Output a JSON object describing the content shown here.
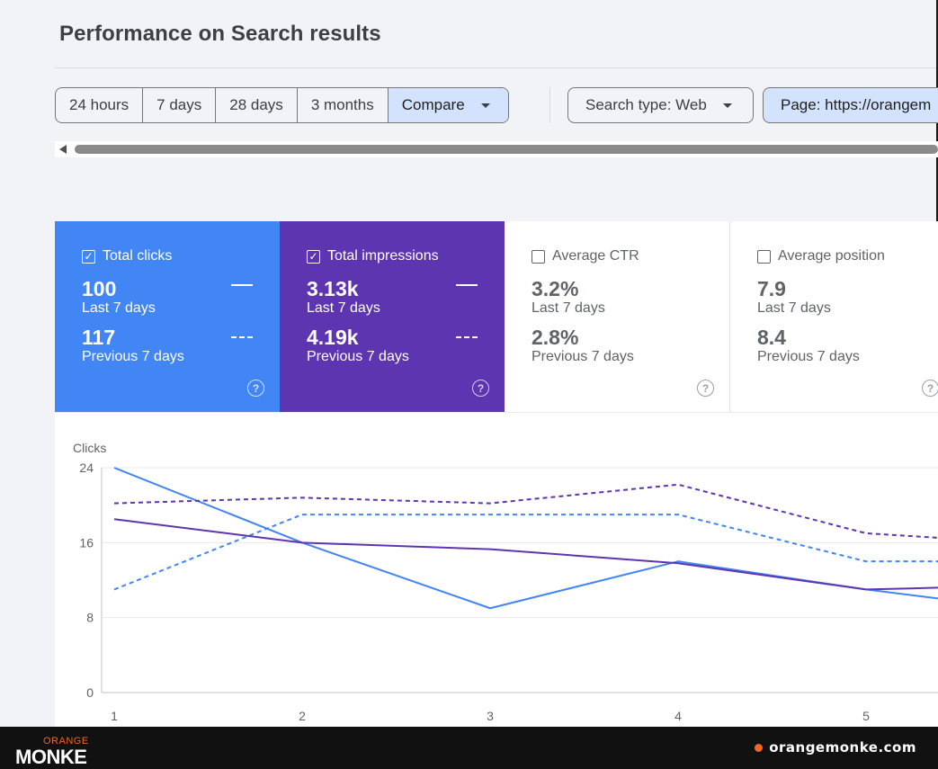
{
  "page": {
    "title": "Performance on Search results"
  },
  "date_range": {
    "options": [
      "24 hours",
      "7 days",
      "28 days",
      "3 months"
    ],
    "compare_label": "Compare"
  },
  "filters": {
    "search_type": "Search type: Web",
    "page": "Page: https://orangem"
  },
  "metrics": {
    "clicks": {
      "label": "Total clicks",
      "checked": true,
      "current": "100",
      "current_period": "Last 7 days",
      "previous": "117",
      "previous_period": "Previous 7 days",
      "color": "#4285f4"
    },
    "impressions": {
      "label": "Total impressions",
      "checked": true,
      "current": "3.13k",
      "current_period": "Last 7 days",
      "previous": "4.19k",
      "previous_period": "Previous 7 days",
      "color": "#5e35b1"
    },
    "ctr": {
      "label": "Average CTR",
      "checked": false,
      "current": "3.2%",
      "current_period": "Last 7 days",
      "previous": "2.8%",
      "previous_period": "Previous 7 days"
    },
    "position": {
      "label": "Average position",
      "checked": false,
      "current": "7.9",
      "current_period": "Last 7 days",
      "previous": "8.4",
      "previous_period": "Previous 7 days"
    }
  },
  "chart_data": {
    "type": "line",
    "ylabel": "Clicks",
    "x": [
      1,
      2,
      3,
      4,
      5,
      5.4
    ],
    "xticks": [
      "1",
      "2",
      "3",
      "4",
      "5"
    ],
    "yticks": [
      "0",
      "8",
      "16",
      "24"
    ],
    "ylim": [
      0,
      24
    ],
    "grid": true,
    "series": [
      {
        "style": "solid",
        "color": "#4285f4",
        "values": [
          24,
          16,
          9,
          14,
          11,
          10
        ]
      },
      {
        "style": "dashed",
        "color": "#4285f4",
        "values": [
          11,
          19,
          19,
          19,
          14,
          14
        ]
      },
      {
        "style": "solid",
        "color": "#5e35b1",
        "values": [
          18.5,
          16,
          15.3,
          13.8,
          11,
          11.2
        ]
      },
      {
        "style": "dashed",
        "color": "#5e35b1",
        "values": [
          20.2,
          20.8,
          20.2,
          22.2,
          17,
          16.5
        ]
      }
    ]
  },
  "footer": {
    "logo_top": "ORANGE",
    "logo_main": "MONKE",
    "site": "orangemonke.com"
  }
}
